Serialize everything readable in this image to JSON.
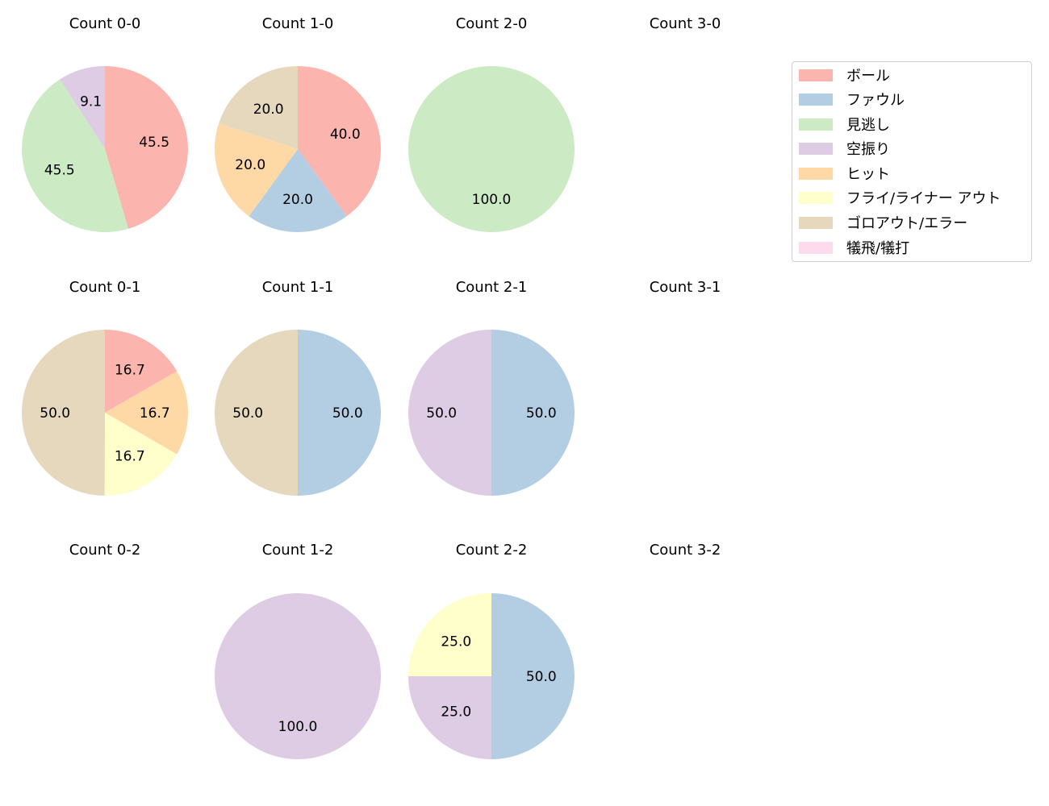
{
  "chart_data": [
    {
      "type": "pie",
      "title": "Count 0-0",
      "labels": [
        "ボール",
        "見逃し",
        "空振り"
      ],
      "values": [
        45.5,
        45.5,
        9.1
      ],
      "colors": [
        "#fbb4ae",
        "#ccebc5",
        "#decbe4"
      ]
    },
    {
      "type": "pie",
      "title": "Count 1-0",
      "labels": [
        "ボール",
        "ファウル",
        "ヒット",
        "ゴロアウト/エラー"
      ],
      "values": [
        40.0,
        20.0,
        20.0,
        20.0
      ],
      "colors": [
        "#fbb4ae",
        "#b3cde3",
        "#fed9a6",
        "#e5d8bd"
      ]
    },
    {
      "type": "pie",
      "title": "Count 2-0",
      "labels": [
        "見逃し"
      ],
      "values": [
        100.0
      ],
      "colors": [
        "#ccebc5"
      ]
    },
    {
      "type": "pie",
      "title": "Count 3-0",
      "labels": [],
      "values": [],
      "colors": []
    },
    {
      "type": "pie",
      "title": "Count 0-1",
      "labels": [
        "ボール",
        "ヒット",
        "フライ/ライナー アウト",
        "ゴロアウト/エラー"
      ],
      "values": [
        16.7,
        16.7,
        16.7,
        50.0
      ],
      "colors": [
        "#fbb4ae",
        "#fed9a6",
        "#ffffcc",
        "#e5d8bd"
      ]
    },
    {
      "type": "pie",
      "title": "Count 1-1",
      "labels": [
        "ファウル",
        "ゴロアウト/エラー"
      ],
      "values": [
        50.0,
        50.0
      ],
      "colors": [
        "#b3cde3",
        "#e5d8bd"
      ]
    },
    {
      "type": "pie",
      "title": "Count 2-1",
      "labels": [
        "ファウル",
        "空振り"
      ],
      "values": [
        50.0,
        50.0
      ],
      "colors": [
        "#b3cde3",
        "#decbe4"
      ]
    },
    {
      "type": "pie",
      "title": "Count 3-1",
      "labels": [],
      "values": [],
      "colors": []
    },
    {
      "type": "pie",
      "title": "Count 0-2",
      "labels": [],
      "values": [],
      "colors": []
    },
    {
      "type": "pie",
      "title": "Count 1-2",
      "labels": [
        "空振り"
      ],
      "values": [
        100.0
      ],
      "colors": [
        "#decbe4"
      ]
    },
    {
      "type": "pie",
      "title": "Count 2-2",
      "labels": [
        "ファウル",
        "空振り",
        "フライ/ライナー アウト"
      ],
      "values": [
        50.0,
        25.0,
        25.0
      ],
      "colors": [
        "#b3cde3",
        "#decbe4",
        "#ffffcc"
      ]
    },
    {
      "type": "pie",
      "title": "Count 3-2",
      "labels": [],
      "values": [],
      "colors": []
    }
  ],
  "legend": {
    "items": [
      {
        "label": "ボール",
        "color": "#fbb4ae"
      },
      {
        "label": "ファウル",
        "color": "#b3cde3"
      },
      {
        "label": "見逃し",
        "color": "#ccebc5"
      },
      {
        "label": "空振り",
        "color": "#decbe4"
      },
      {
        "label": "ヒット",
        "color": "#fed9a6"
      },
      {
        "label": "フライ/ライナー アウト",
        "color": "#ffffcc"
      },
      {
        "label": "ゴロアウト/エラー",
        "color": "#e5d8bd"
      },
      {
        "label": "犠飛/犠打",
        "color": "#fddaec"
      }
    ]
  }
}
